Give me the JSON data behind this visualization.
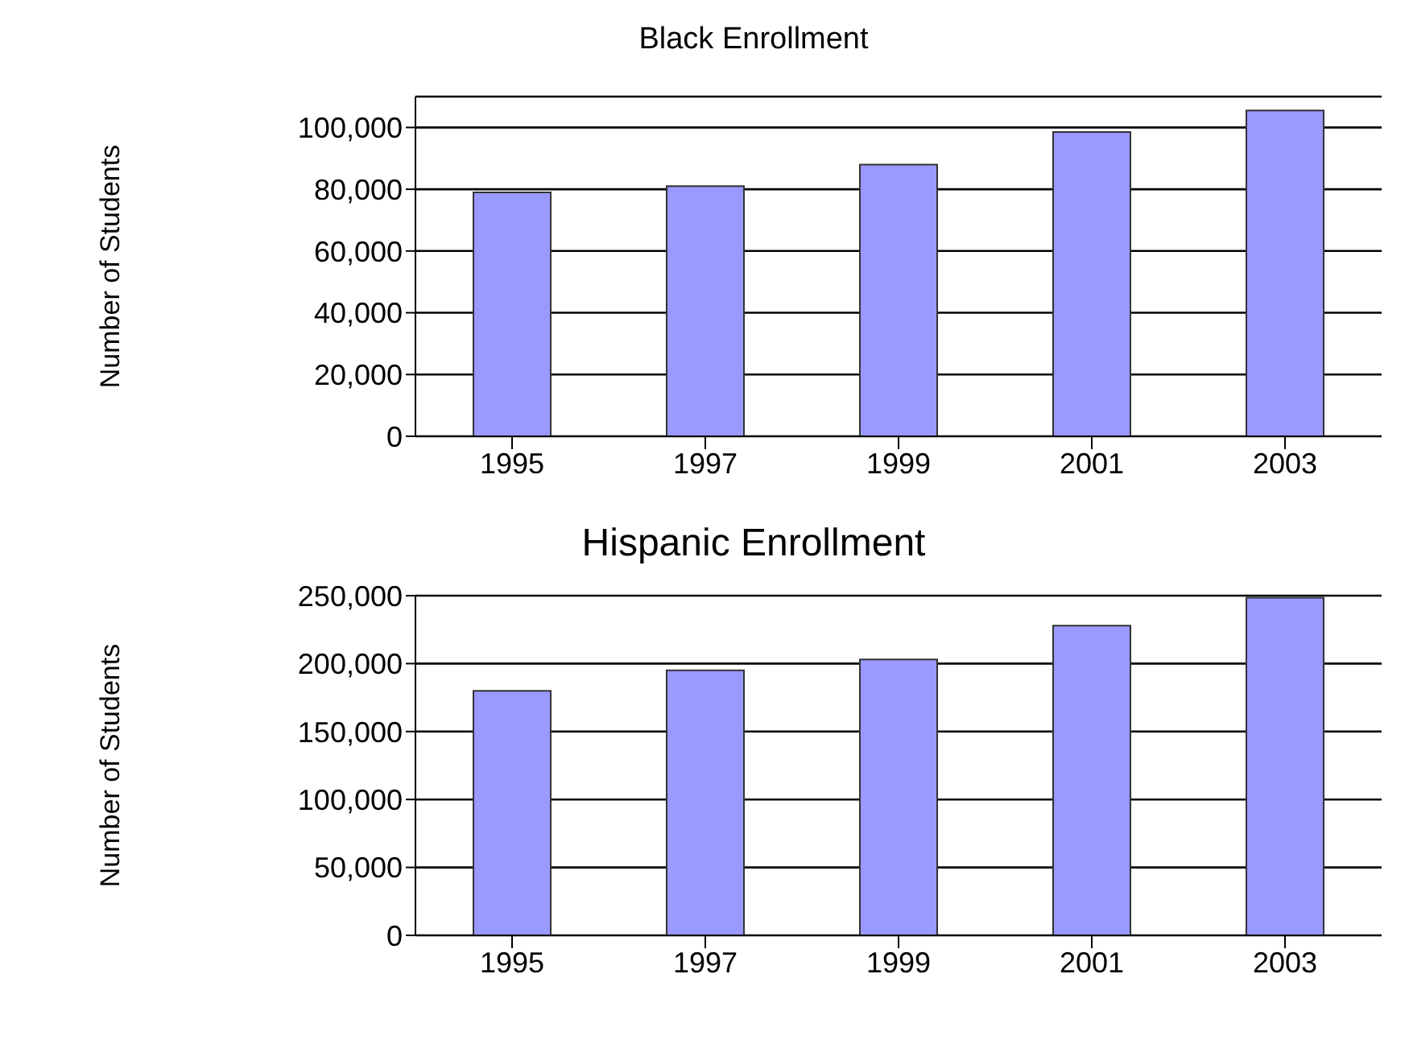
{
  "chart_data": [
    {
      "type": "bar",
      "title": "Black Enrollment",
      "ylabel": "Number of Students",
      "categories": [
        "1995",
        "1997",
        "1999",
        "2001",
        "2003"
      ],
      "values": [
        79000,
        81000,
        88000,
        98500,
        105500
      ],
      "color": "#9999ff",
      "ylim": [
        0,
        110000
      ],
      "yticks": [
        {
          "value": 0,
          "label": "0"
        },
        {
          "value": 20000,
          "label": "20,000"
        },
        {
          "value": 40000,
          "label": "40,000"
        },
        {
          "value": 60000,
          "label": "60,000"
        },
        {
          "value": 80000,
          "label": "80,000"
        },
        {
          "value": 100000,
          "label": "100,000"
        }
      ],
      "grid": "y"
    },
    {
      "type": "bar",
      "title": "Hispanic Enrollment",
      "ylabel": "Number of Students",
      "categories": [
        "1995",
        "1997",
        "1999",
        "2001",
        "2003"
      ],
      "values": [
        180000,
        195000,
        203000,
        228000,
        248500
      ],
      "color": "#9999ff",
      "ylim": [
        0,
        250000
      ],
      "yticks": [
        {
          "value": 0,
          "label": "0"
        },
        {
          "value": 50000,
          "label": "50,000"
        },
        {
          "value": 100000,
          "label": "100,000"
        },
        {
          "value": 150000,
          "label": "150,000"
        },
        {
          "value": 200000,
          "label": "200,000"
        },
        {
          "value": 250000,
          "label": "250,000"
        }
      ],
      "grid": "y"
    }
  ]
}
